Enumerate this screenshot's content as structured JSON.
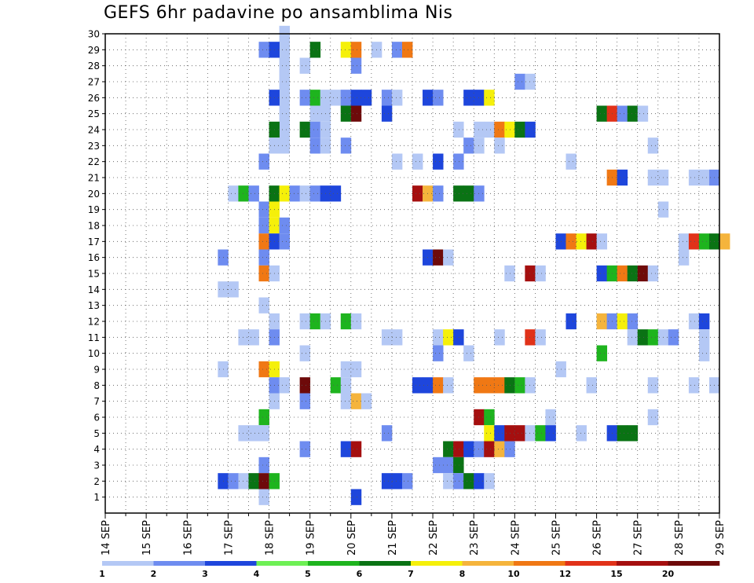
{
  "chart_data": {
    "type": "heatmap",
    "title": "GEFS 6hr padavine po ansamblima Nis",
    "x_labels": [
      "14 SEP",
      "15 SEP",
      "16 SEP",
      "17 SEP",
      "18 SEP",
      "19 SEP",
      "20 SEP",
      "21 SEP",
      "22 SEP",
      "23 SEP",
      "24 SEP",
      "25 SEP",
      "26 SEP",
      "27 SEP",
      "28 SEP",
      "29 SEP"
    ],
    "y_labels": [
      "1",
      "2",
      "3",
      "4",
      "5",
      "6",
      "7",
      "8",
      "9",
      "10",
      "11",
      "12",
      "13",
      "14",
      "15",
      "16",
      "17",
      "18",
      "19",
      "20",
      "21",
      "22",
      "23",
      "24",
      "25",
      "26",
      "27",
      "28",
      "29",
      "30"
    ],
    "ylim": [
      0,
      30
    ],
    "x_range_days": [
      14,
      29
    ],
    "steps_per_day": 4,
    "grid": true,
    "colorbar": {
      "labels": [
        "1",
        "2",
        "3",
        "4",
        "5",
        "6",
        "7",
        "8",
        "10",
        "12",
        "15",
        "20"
      ],
      "colors": [
        "#b4c8f5",
        "#6e8cf0",
        "#1e46dc",
        "#6ef055",
        "#1eb41e",
        "#0a7314",
        "#f5f00a",
        "#f5b43c",
        "#f07814",
        "#e13219",
        "#a50f0f",
        "#6e0a0a"
      ]
    },
    "cells": [
      [
        18.25,
        30,
        1,
        8
      ],
      [
        17.75,
        29,
        2
      ],
      [
        18.0,
        29,
        3
      ],
      [
        19.0,
        29,
        6
      ],
      [
        19.75,
        29,
        7
      ],
      [
        20.0,
        29,
        10
      ],
      [
        20.5,
        29,
        1
      ],
      [
        21.0,
        29,
        2
      ],
      [
        21.25,
        29,
        10
      ],
      [
        18.75,
        28,
        1
      ],
      [
        20.0,
        28,
        2
      ],
      [
        24.0,
        27,
        2
      ],
      [
        24.25,
        27,
        1
      ],
      [
        18.0,
        26,
        3
      ],
      [
        18.75,
        26,
        2
      ],
      [
        19.0,
        26,
        5
      ],
      [
        19.25,
        26,
        1
      ],
      [
        19.5,
        26,
        1
      ],
      [
        19.75,
        26,
        2
      ],
      [
        20.0,
        26,
        3
      ],
      [
        20.25,
        26,
        3
      ],
      [
        20.75,
        26,
        2
      ],
      [
        21.0,
        26,
        1
      ],
      [
        21.75,
        26,
        3
      ],
      [
        22.0,
        26,
        2
      ],
      [
        22.75,
        26,
        3
      ],
      [
        23.0,
        26,
        3
      ],
      [
        23.25,
        26,
        7
      ],
      [
        19.0,
        25,
        1
      ],
      [
        19.25,
        25,
        1
      ],
      [
        19.75,
        25,
        6
      ],
      [
        20.0,
        25,
        20
      ],
      [
        20.75,
        25,
        3
      ],
      [
        26.0,
        25,
        6
      ],
      [
        26.25,
        25,
        12
      ],
      [
        26.5,
        25,
        2
      ],
      [
        26.75,
        25,
        6
      ],
      [
        27.0,
        25,
        1
      ],
      [
        18.0,
        24,
        6
      ],
      [
        18.75,
        24,
        6
      ],
      [
        19.0,
        24,
        2
      ],
      [
        19.25,
        24,
        1
      ],
      [
        22.5,
        24,
        1
      ],
      [
        23.0,
        24,
        1
      ],
      [
        23.25,
        24,
        1
      ],
      [
        23.5,
        24,
        10
      ],
      [
        23.75,
        24,
        7
      ],
      [
        24.0,
        24,
        6
      ],
      [
        24.25,
        24,
        3
      ],
      [
        18.0,
        23,
        1
      ],
      [
        19.0,
        23,
        2
      ],
      [
        19.25,
        23,
        1
      ],
      [
        19.75,
        23,
        2
      ],
      [
        22.75,
        23,
        2
      ],
      [
        23.0,
        23,
        1
      ],
      [
        23.5,
        23,
        1
      ],
      [
        27.25,
        23,
        1
      ],
      [
        17.75,
        22,
        2
      ],
      [
        21.0,
        22,
        1
      ],
      [
        21.5,
        22,
        1
      ],
      [
        22.0,
        22,
        3
      ],
      [
        22.5,
        22,
        2
      ],
      [
        25.25,
        22,
        1
      ],
      [
        26.25,
        21,
        10
      ],
      [
        26.5,
        21,
        3
      ],
      [
        27.25,
        21,
        1
      ],
      [
        27.5,
        21,
        1
      ],
      [
        28.25,
        21,
        1
      ],
      [
        28.5,
        21,
        1
      ],
      [
        28.75,
        21,
        2
      ],
      [
        17.0,
        20,
        1
      ],
      [
        17.25,
        20,
        5
      ],
      [
        17.5,
        20,
        2
      ],
      [
        18.0,
        20,
        6
      ],
      [
        18.25,
        20,
        7
      ],
      [
        18.5,
        20,
        2
      ],
      [
        18.75,
        20,
        1
      ],
      [
        19.0,
        20,
        2
      ],
      [
        19.25,
        20,
        3
      ],
      [
        19.5,
        20,
        3
      ],
      [
        21.5,
        20,
        15
      ],
      [
        21.75,
        20,
        8
      ],
      [
        22.0,
        20,
        2
      ],
      [
        22.5,
        20,
        6
      ],
      [
        22.75,
        20,
        6
      ],
      [
        23.0,
        20,
        2
      ],
      [
        17.75,
        19,
        2
      ],
      [
        18.0,
        19,
        7
      ],
      [
        27.5,
        19,
        1
      ],
      [
        17.75,
        18,
        2
      ],
      [
        18.0,
        18,
        7
      ],
      [
        18.25,
        18,
        2
      ],
      [
        17.75,
        17,
        10
      ],
      [
        18.0,
        17,
        3
      ],
      [
        18.25,
        17,
        2
      ],
      [
        25.0,
        17,
        3
      ],
      [
        25.25,
        17,
        10
      ],
      [
        25.5,
        17,
        7
      ],
      [
        25.75,
        17,
        15
      ],
      [
        26.0,
        17,
        1
      ],
      [
        28.0,
        17,
        1
      ],
      [
        28.25,
        17,
        12
      ],
      [
        28.5,
        17,
        5
      ],
      [
        28.75,
        17,
        6
      ],
      [
        29.0,
        17,
        8
      ],
      [
        16.75,
        16,
        2
      ],
      [
        17.75,
        16,
        2
      ],
      [
        21.75,
        16,
        3
      ],
      [
        22.0,
        16,
        20
      ],
      [
        22.25,
        16,
        1
      ],
      [
        28.0,
        16,
        1
      ],
      [
        17.75,
        15,
        10
      ],
      [
        18.0,
        15,
        1
      ],
      [
        23.75,
        15,
        1
      ],
      [
        24.25,
        15,
        15
      ],
      [
        24.5,
        15,
        1
      ],
      [
        26.0,
        15,
        3
      ],
      [
        26.25,
        15,
        5
      ],
      [
        26.5,
        15,
        10
      ],
      [
        26.75,
        15,
        6
      ],
      [
        27.0,
        15,
        20
      ],
      [
        27.25,
        15,
        1
      ],
      [
        16.75,
        14,
        1
      ],
      [
        17.0,
        14,
        1
      ],
      [
        17.75,
        13,
        1
      ],
      [
        18.0,
        12,
        1
      ],
      [
        18.75,
        12,
        1
      ],
      [
        19.0,
        12,
        5
      ],
      [
        19.25,
        12,
        1
      ],
      [
        19.75,
        12,
        5
      ],
      [
        20.0,
        12,
        1
      ],
      [
        25.25,
        12,
        3
      ],
      [
        26.0,
        12,
        8
      ],
      [
        26.25,
        12,
        2
      ],
      [
        26.5,
        12,
        7
      ],
      [
        26.75,
        12,
        2
      ],
      [
        28.25,
        12,
        1
      ],
      [
        28.5,
        12,
        3
      ],
      [
        17.25,
        11,
        1
      ],
      [
        17.5,
        11,
        1
      ],
      [
        18.0,
        11,
        2
      ],
      [
        20.75,
        11,
        1
      ],
      [
        21.0,
        11,
        1
      ],
      [
        22.0,
        11,
        1
      ],
      [
        22.25,
        11,
        7
      ],
      [
        22.5,
        11,
        3
      ],
      [
        23.5,
        11,
        1
      ],
      [
        24.25,
        11,
        12
      ],
      [
        24.5,
        11,
        1
      ],
      [
        26.75,
        11,
        1
      ],
      [
        27.0,
        11,
        6
      ],
      [
        27.25,
        11,
        5
      ],
      [
        27.5,
        11,
        1
      ],
      [
        27.75,
        11,
        2
      ],
      [
        28.5,
        11,
        1
      ],
      [
        18.75,
        10,
        1
      ],
      [
        22.0,
        10,
        2
      ],
      [
        22.75,
        10,
        1
      ],
      [
        26.0,
        10,
        5
      ],
      [
        28.5,
        10,
        1
      ],
      [
        16.75,
        9,
        1
      ],
      [
        17.75,
        9,
        10
      ],
      [
        18.0,
        9,
        7
      ],
      [
        19.75,
        9,
        1
      ],
      [
        20.0,
        9,
        1
      ],
      [
        25.0,
        9,
        1
      ],
      [
        18.0,
        8,
        2
      ],
      [
        18.25,
        8,
        1
      ],
      [
        18.75,
        8,
        20
      ],
      [
        19.5,
        8,
        5
      ],
      [
        19.75,
        8,
        1
      ],
      [
        21.5,
        8,
        3
      ],
      [
        21.75,
        8,
        3
      ],
      [
        22.0,
        8,
        10
      ],
      [
        22.25,
        8,
        1
      ],
      [
        23.0,
        8,
        10
      ],
      [
        23.25,
        8,
        10
      ],
      [
        23.5,
        8,
        10
      ],
      [
        23.75,
        8,
        6
      ],
      [
        24.0,
        8,
        5
      ],
      [
        24.25,
        8,
        1
      ],
      [
        25.75,
        8,
        1
      ],
      [
        27.25,
        8,
        1
      ],
      [
        28.25,
        8,
        1
      ],
      [
        28.75,
        8,
        1
      ],
      [
        18.0,
        7,
        1
      ],
      [
        18.75,
        7,
        2
      ],
      [
        19.75,
        7,
        1
      ],
      [
        20.0,
        7,
        8
      ],
      [
        20.25,
        7,
        1
      ],
      [
        17.75,
        6,
        5
      ],
      [
        23.0,
        6,
        15
      ],
      [
        23.25,
        6,
        5
      ],
      [
        24.75,
        6,
        1
      ],
      [
        27.25,
        6,
        1
      ],
      [
        17.25,
        5,
        1
      ],
      [
        17.5,
        5,
        1
      ],
      [
        17.75,
        5,
        1
      ],
      [
        20.75,
        5,
        2
      ],
      [
        23.25,
        5,
        7
      ],
      [
        23.5,
        5,
        3
      ],
      [
        23.75,
        5,
        15
      ],
      [
        24.0,
        5,
        15
      ],
      [
        24.25,
        5,
        1
      ],
      [
        24.5,
        5,
        5
      ],
      [
        24.75,
        5,
        3
      ],
      [
        25.5,
        5,
        1
      ],
      [
        26.25,
        5,
        3
      ],
      [
        26.5,
        5,
        6
      ],
      [
        26.75,
        5,
        6
      ],
      [
        18.75,
        4,
        2
      ],
      [
        19.75,
        4,
        3
      ],
      [
        20.0,
        4,
        15
      ],
      [
        22.25,
        4,
        6
      ],
      [
        22.5,
        4,
        15
      ],
      [
        22.75,
        4,
        3
      ],
      [
        23.0,
        4,
        2
      ],
      [
        23.25,
        4,
        15
      ],
      [
        23.5,
        4,
        8
      ],
      [
        23.75,
        4,
        2
      ],
      [
        17.75,
        3,
        2
      ],
      [
        22.0,
        3,
        2
      ],
      [
        22.25,
        3,
        2
      ],
      [
        22.5,
        3,
        6
      ],
      [
        16.75,
        2,
        3
      ],
      [
        17.0,
        2,
        2
      ],
      [
        17.25,
        2,
        1
      ],
      [
        17.5,
        2,
        6
      ],
      [
        17.75,
        2,
        20
      ],
      [
        18.0,
        2,
        5
      ],
      [
        20.75,
        2,
        3
      ],
      [
        21.0,
        2,
        3
      ],
      [
        21.25,
        2,
        2
      ],
      [
        22.25,
        2,
        1
      ],
      [
        22.5,
        2,
        2
      ],
      [
        22.75,
        2,
        6
      ],
      [
        23.0,
        2,
        3
      ],
      [
        23.25,
        2,
        1
      ],
      [
        17.75,
        1,
        1
      ],
      [
        20.0,
        1,
        3
      ]
    ]
  }
}
